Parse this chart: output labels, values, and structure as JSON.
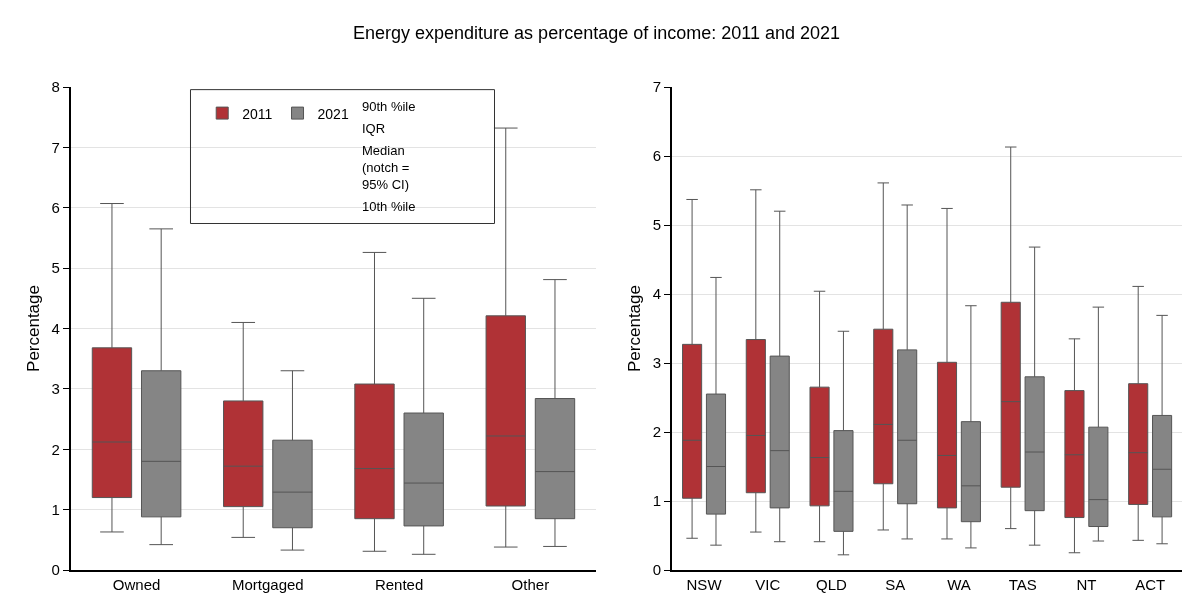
{
  "chart_data": [
    {
      "type": "box",
      "title": "Energy expenditure as percentage of income: 2011 and 2021",
      "ylabel": "Percentage",
      "categories": [
        "Owned",
        "Mortgaged",
        "Rented",
        "Other"
      ],
      "series": [
        {
          "name": "2011",
          "color": "#b03236",
          "boxes": [
            {
              "low": 0.63,
              "q1": 1.2,
              "median": 2.12,
              "q3": 3.68,
              "high": 6.07
            },
            {
              "low": 0.54,
              "q1": 1.05,
              "median": 1.72,
              "q3": 2.8,
              "high": 4.1
            },
            {
              "low": 0.31,
              "q1": 0.85,
              "median": 1.68,
              "q3": 3.08,
              "high": 5.26
            },
            {
              "low": 0.38,
              "q1": 1.06,
              "median": 2.22,
              "q3": 4.21,
              "high": 7.32
            }
          ]
        },
        {
          "name": "2021",
          "color": "#858585",
          "boxes": [
            {
              "low": 0.42,
              "q1": 0.88,
              "median": 1.8,
              "q3": 3.3,
              "high": 5.65
            },
            {
              "low": 0.33,
              "q1": 0.7,
              "median": 1.29,
              "q3": 2.15,
              "high": 3.3
            },
            {
              "low": 0.26,
              "q1": 0.73,
              "median": 1.44,
              "q3": 2.6,
              "high": 4.5
            },
            {
              "low": 0.39,
              "q1": 0.85,
              "median": 1.63,
              "q3": 2.84,
              "high": 4.81
            }
          ]
        }
      ],
      "ylim": [
        0,
        8
      ],
      "yticks": [
        0,
        1,
        2,
        3,
        4,
        5,
        6,
        7,
        8
      ],
      "grid": "y",
      "legend": "top",
      "annotations": [
        "90th %ile",
        "IQR",
        "Median\n(notch =\n95% CI)",
        "10th %ile"
      ]
    },
    {
      "type": "box",
      "ylabel": "Percentage",
      "categories": [
        "NSW",
        "VIC",
        "QLD",
        "SA",
        "WA",
        "TAS",
        "NT",
        "ACT"
      ],
      "series": [
        {
          "color": "#b03236",
          "boxes": [
            {
              "low": 0.46,
              "q1": 1.04,
              "median": 1.88,
              "q3": 3.27,
              "high": 5.37
            },
            {
              "low": 0.55,
              "q1": 1.12,
              "median": 1.95,
              "q3": 3.34,
              "high": 5.51
            },
            {
              "low": 0.41,
              "q1": 0.93,
              "median": 1.63,
              "q3": 2.65,
              "high": 4.04
            },
            {
              "low": 0.58,
              "q1": 1.25,
              "median": 2.11,
              "q3": 3.49,
              "high": 5.61
            },
            {
              "low": 0.45,
              "q1": 0.9,
              "median": 1.66,
              "q3": 3.01,
              "high": 5.24
            },
            {
              "low": 0.6,
              "q1": 1.2,
              "median": 2.44,
              "q3": 3.88,
              "high": 6.13
            },
            {
              "low": 0.25,
              "q1": 0.76,
              "median": 1.67,
              "q3": 2.6,
              "high": 3.35
            },
            {
              "low": 0.43,
              "q1": 0.95,
              "median": 1.7,
              "q3": 2.7,
              "high": 4.11
            }
          ]
        },
        {
          "color": "#858585",
          "boxes": [
            {
              "low": 0.36,
              "q1": 0.81,
              "median": 1.5,
              "q3": 2.55,
              "high": 4.24
            },
            {
              "low": 0.41,
              "q1": 0.9,
              "median": 1.73,
              "q3": 3.1,
              "high": 5.2
            },
            {
              "low": 0.22,
              "q1": 0.56,
              "median": 1.14,
              "q3": 2.02,
              "high": 3.46
            },
            {
              "low": 0.45,
              "q1": 0.96,
              "median": 1.88,
              "q3": 3.19,
              "high": 5.29
            },
            {
              "low": 0.32,
              "q1": 0.7,
              "median": 1.22,
              "q3": 2.15,
              "high": 3.83
            },
            {
              "low": 0.36,
              "q1": 0.86,
              "median": 1.71,
              "q3": 2.8,
              "high": 4.68
            },
            {
              "low": 0.42,
              "q1": 0.63,
              "median": 1.02,
              "q3": 2.07,
              "high": 3.81
            },
            {
              "low": 0.38,
              "q1": 0.77,
              "median": 1.46,
              "q3": 2.24,
              "high": 3.69
            }
          ]
        }
      ],
      "ylim": [
        0,
        7
      ],
      "yticks": [
        0,
        1,
        2,
        3,
        4,
        5,
        6,
        7
      ],
      "grid": "y"
    }
  ]
}
